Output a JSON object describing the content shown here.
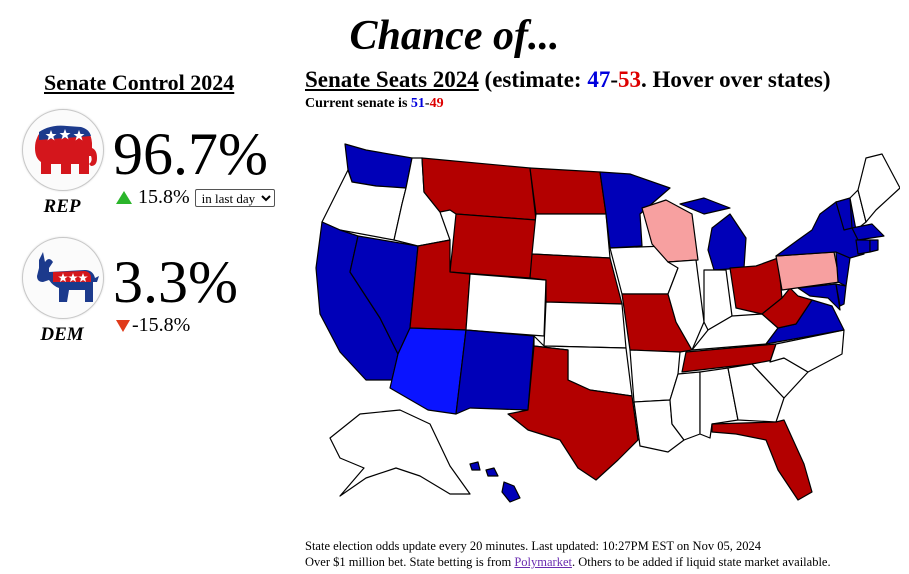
{
  "title": "Chance of...",
  "control": {
    "heading": "Senate Control 2024",
    "rep": {
      "label": "REP",
      "percent": "96.7%",
      "change": "15.8%",
      "period_select": {
        "selected": "in last day"
      },
      "logo_icon": "republican-elephant-icon"
    },
    "dem": {
      "label": "DEM",
      "percent": "3.3%",
      "change": "-15.8%",
      "logo_icon": "democratic-donkey-icon"
    }
  },
  "seats": {
    "heading_main": "Senate Seats 2024",
    "heading_open": "(estimate: ",
    "dem_estimate": "47",
    "sep": "-",
    "rep_estimate": "53",
    "heading_close": ". Hover over states)",
    "current_prefix": "Current senate is ",
    "current_dem": "51",
    "current_sep": "-",
    "current_rep": "49"
  },
  "map": {
    "colors": {
      "safe_dem": "#0000b8",
      "lean_dem": "#0a14ff",
      "safe_rep": "#b30000",
      "lean_rep": "#f7a0a0",
      "no_race": "#ffffff"
    },
    "states": {
      "safe_dem": [
        "WA",
        "CA",
        "NV",
        "NM",
        "MN",
        "MI",
        "NY",
        "VT",
        "CT",
        "MA",
        "RI",
        "NJ",
        "DE",
        "MD",
        "VA",
        "HI"
      ],
      "lean_dem": [
        "AZ"
      ],
      "safe_rep": [
        "MT",
        "ND",
        "WY",
        "NE",
        "MO",
        "TX",
        "TN",
        "OH",
        "WV",
        "FL",
        "UT"
      ],
      "lean_rep": [
        "WI",
        "PA"
      ]
    }
  },
  "footer": {
    "line1": "State election odds update every 20 minutes. Last updated: 10:27PM EST on Nov 05, 2024",
    "line2_prefix": "Over $1 million bet. State betting is from ",
    "line2_link": "Polymarket",
    "line2_suffix": ". Others to be added if liquid state market available."
  }
}
